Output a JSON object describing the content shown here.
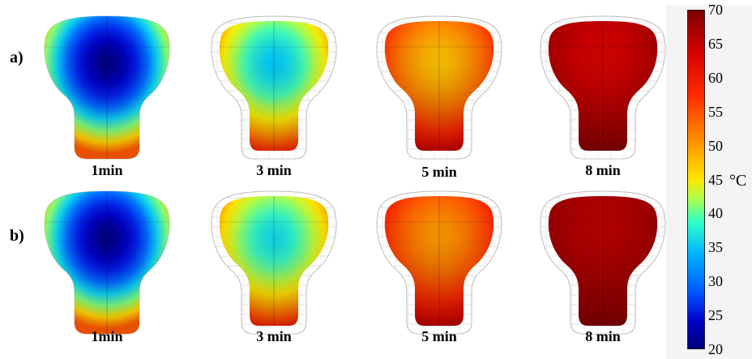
{
  "rows": [
    {
      "label": "a)",
      "panels": [
        {
          "time": "1min",
          "heat": 0.0
        },
        {
          "time": "3 min",
          "heat": 0.35
        },
        {
          "time": "5 min",
          "heat": 0.65
        },
        {
          "time": "8 min",
          "heat": 0.92
        }
      ]
    },
    {
      "label": "b)",
      "panels": [
        {
          "time": "1min",
          "heat": 0.0
        },
        {
          "time": "3 min",
          "heat": 0.38
        },
        {
          "time": "5 min",
          "heat": 0.7
        },
        {
          "time": "8 min",
          "heat": 0.95
        }
      ]
    }
  ],
  "colorbar": {
    "min": 20,
    "max": 70,
    "ticks": [
      "70",
      "65",
      "60",
      "55",
      "50",
      "45",
      "40",
      "35",
      "30",
      "25",
      "20"
    ],
    "unit": "°C"
  }
}
